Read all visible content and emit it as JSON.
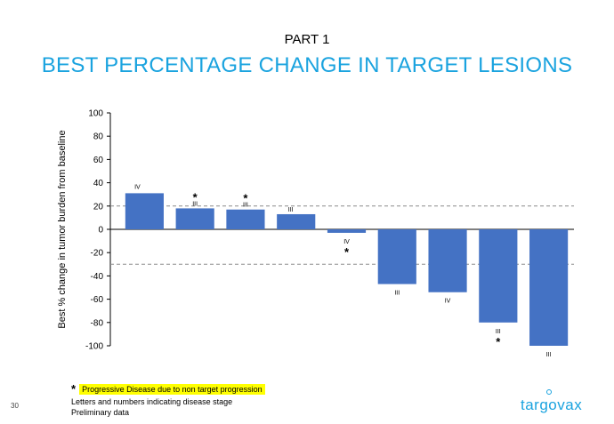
{
  "header": {
    "part": "PART 1",
    "title": "BEST PERCENTAGE CHANGE IN TARGET LESIONS"
  },
  "chart_data": {
    "type": "bar",
    "ylabel": "Best % change in tumor burden from baseline",
    "ylim": [
      -100,
      100
    ],
    "yticks": [
      100,
      80,
      60,
      40,
      20,
      0,
      -20,
      -40,
      -60,
      -80,
      -100
    ],
    "values": [
      31,
      18,
      17,
      13,
      -3,
      -47,
      -54,
      -80,
      -100
    ],
    "stage_labels": [
      "IV",
      "III",
      "III",
      "III",
      "IV",
      "III",
      "IV",
      "III",
      "III"
    ],
    "asterisks": [
      false,
      true,
      true,
      false,
      true,
      false,
      false,
      true,
      false
    ],
    "reference_lines": [
      20,
      -30
    ],
    "bar_color": "#4472c4"
  },
  "footer": {
    "asterisk": "*",
    "legend_note": "Progressive Disease due to non target progression",
    "note_1": "Letters and numbers indicating disease stage",
    "note_2": "Preliminary data",
    "page_number": "30",
    "logo_text": "targovax"
  },
  "colors": {
    "accent": "#1aa3df",
    "highlight": "#ffff00"
  }
}
